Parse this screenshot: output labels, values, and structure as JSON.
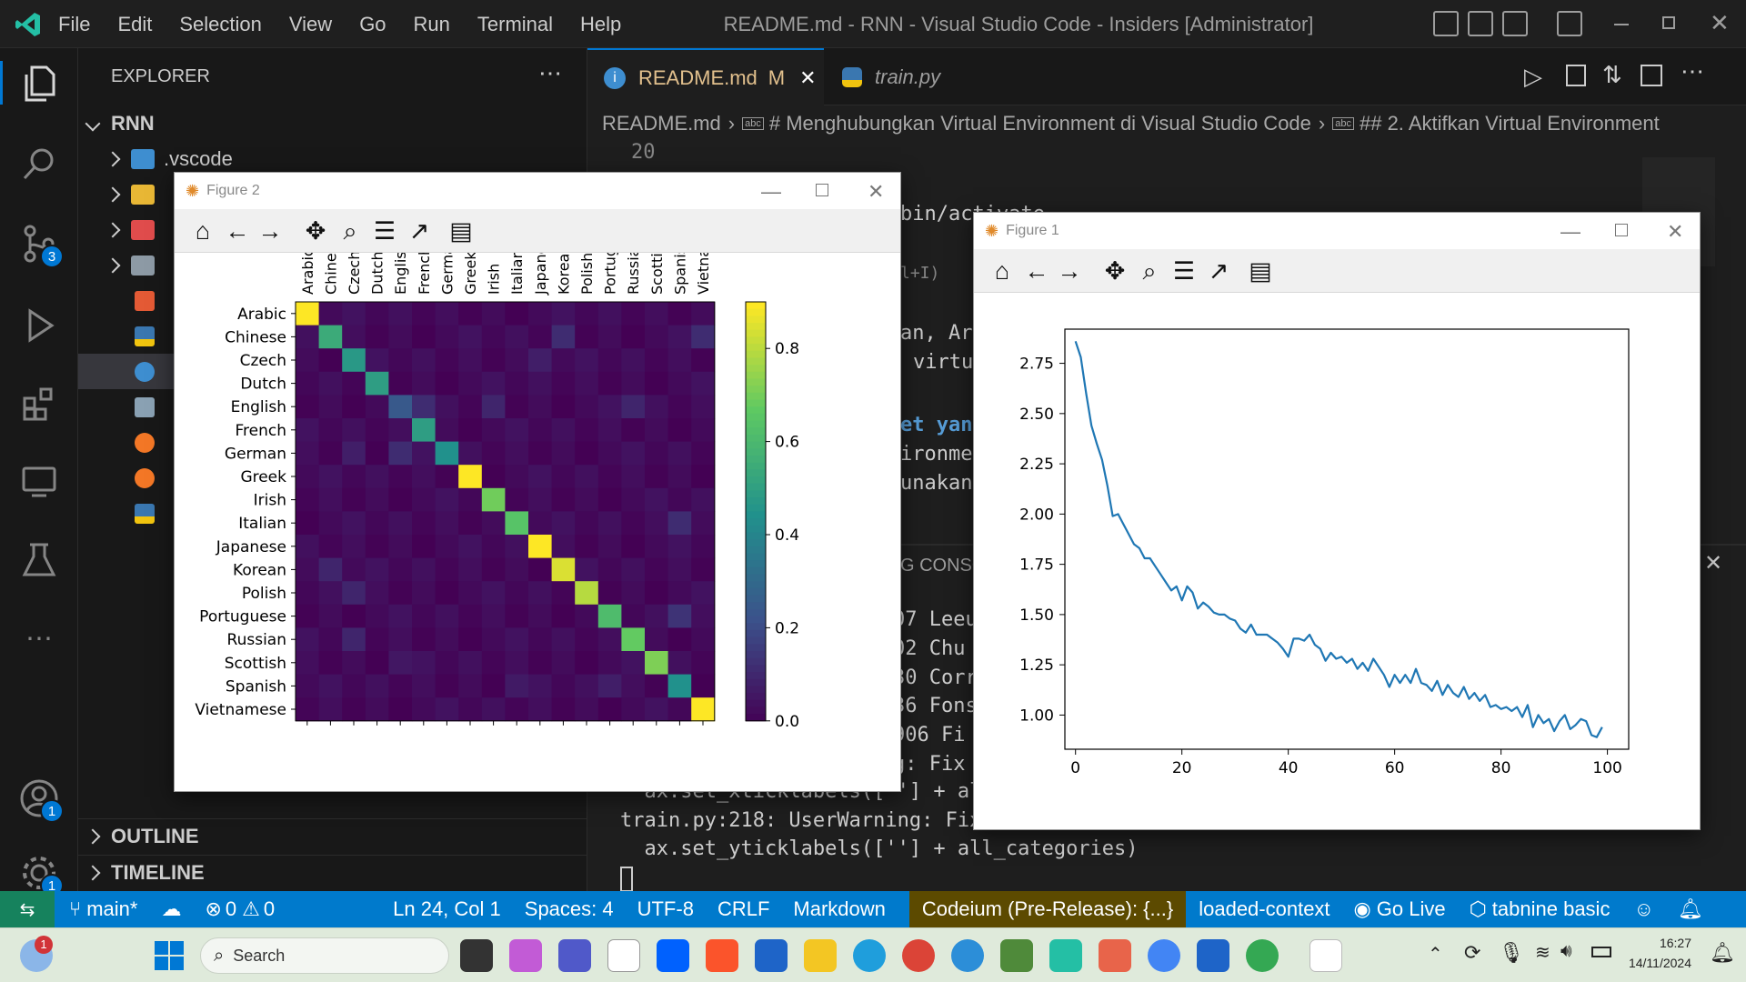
{
  "window": {
    "title": "README.md - RNN - Visual Studio Code - Insiders [Administrator]"
  },
  "menu": [
    "File",
    "Edit",
    "Selection",
    "View",
    "Go",
    "Run",
    "Terminal",
    "Help"
  ],
  "activity": {
    "scm_badge": "3",
    "accounts_badge": "1",
    "settings_badge": "1"
  },
  "explorer": {
    "title": "EXPLORER",
    "root": "RNN",
    "first_item": ".vscode",
    "outline": "OUTLINE",
    "timeline": "TIMELINE"
  },
  "tabs": [
    {
      "label": "README.md",
      "status": "M"
    },
    {
      "label": "train.py"
    }
  ],
  "breadcrumb": [
    "README.md",
    "# Menghubungkan Virtual Environment di Visual Studio Code",
    "## 2. Aktifkan Virtual Environment"
  ],
  "code": {
    "line_no": "20",
    "fragments": [
      "bin/activate",
      "l+I)",
      "an, Ar",
      "virtu",
      "et yan",
      "ironme",
      "unakan"
    ],
    "panel_label": "G CONSO",
    "terminal_partial": [
      "07 Leeu",
      "02 Chu",
      "30 Corr",
      "36 Fons",
      "906 Fi",
      "g: Fix"
    ],
    "terminal_lines": [
      "  ax.set_xticklabels([''] + al",
      "train.py:218: UserWarning: Fix",
      "  ax.set_yticklabels([''] + all_categories)"
    ]
  },
  "status": {
    "branch": "main*",
    "errors": "0",
    "warnings": "0",
    "position": "Ln 24, Col 1",
    "spaces": "Spaces: 4",
    "encoding": "UTF-8",
    "eol": "CRLF",
    "language": "Markdown",
    "codeium": "Codeium (Pre-Release): {...}",
    "context": "loaded-context",
    "golive": "Go Live",
    "tabnine": "tabnine basic"
  },
  "taskbar": {
    "search": "Search",
    "time": "16:27",
    "date": "14/11/2024",
    "weather_badge": "1"
  },
  "figure2": {
    "title": "Figure 2",
    "chart_data": {
      "type": "heatmap",
      "categories": [
        "Arabic",
        "Chinese",
        "Czech",
        "Dutch",
        "English",
        "French",
        "German",
        "Greek",
        "Irish",
        "Italian",
        "Japanese",
        "Korean",
        "Polish",
        "Portuguese",
        "Russian",
        "Scottish",
        "Spanish",
        "Vietnamese"
      ],
      "x_tick_labels": [
        "Arabic",
        "Chines",
        "Czech",
        "Dutch",
        "English",
        "French",
        "Germa",
        "Greek",
        "Irish",
        "Italian",
        "Japane",
        "Korean",
        "Polish",
        "Portug",
        "Russian",
        "Scottis",
        "Spanish",
        "Vietnar"
      ],
      "diagonal": [
        0.9,
        0.55,
        0.48,
        0.5,
        0.25,
        0.5,
        0.45,
        0.92,
        0.7,
        0.65,
        0.9,
        0.85,
        0.8,
        0.62,
        0.68,
        0.72,
        0.45,
        0.9
      ],
      "off_diagonal": [
        {
          "row": 1,
          "col": 17,
          "value": 0.12
        },
        {
          "row": 1,
          "col": 11,
          "value": 0.12
        },
        {
          "row": 2,
          "col": 10,
          "value": 0.08
        },
        {
          "row": 4,
          "col": 8,
          "value": 0.1
        },
        {
          "row": 4,
          "col": 14,
          "value": 0.1
        },
        {
          "row": 4,
          "col": 5,
          "value": 0.12
        },
        {
          "row": 6,
          "col": 2,
          "value": 0.08
        },
        {
          "row": 6,
          "col": 4,
          "value": 0.12
        },
        {
          "row": 9,
          "col": 16,
          "value": 0.12
        },
        {
          "row": 11,
          "col": 1,
          "value": 0.1
        },
        {
          "row": 12,
          "col": 2,
          "value": 0.1
        },
        {
          "row": 13,
          "col": 16,
          "value": 0.14
        },
        {
          "row": 14,
          "col": 2,
          "value": 0.1
        },
        {
          "row": 15,
          "col": 4,
          "value": 0.06
        },
        {
          "row": 16,
          "col": 9,
          "value": 0.07
        },
        {
          "row": 16,
          "col": 13,
          "value": 0.08
        }
      ],
      "colorbar": {
        "min": 0.0,
        "max": 0.9,
        "ticks": [
          "0.8",
          "0.6",
          "0.4",
          "0.2",
          "0.0"
        ]
      }
    }
  },
  "figure1": {
    "title": "Figure 1",
    "chart_data": {
      "type": "line",
      "x": [
        0,
        1,
        2,
        3,
        4,
        5,
        6,
        7,
        8,
        9,
        10,
        11,
        12,
        13,
        14,
        15,
        16,
        17,
        18,
        19,
        20,
        21,
        22,
        23,
        24,
        25,
        26,
        27,
        28,
        29,
        30,
        31,
        32,
        33,
        34,
        35,
        36,
        37,
        38,
        39,
        40,
        41,
        42,
        43,
        44,
        45,
        46,
        47,
        48,
        49,
        50,
        51,
        52,
        53,
        54,
        55,
        56,
        57,
        58,
        59,
        60,
        61,
        62,
        63,
        64,
        65,
        66,
        67,
        68,
        69,
        70,
        71,
        72,
        73,
        74,
        75,
        76,
        77,
        78,
        79,
        80,
        81,
        82,
        83,
        84,
        85,
        86,
        87,
        88,
        89,
        90,
        91,
        92,
        93,
        94,
        95,
        96,
        97,
        98,
        99
      ],
      "y": [
        2.86,
        2.78,
        2.6,
        2.44,
        2.35,
        2.27,
        2.14,
        1.99,
        2.0,
        1.95,
        1.9,
        1.85,
        1.83,
        1.78,
        1.78,
        1.74,
        1.7,
        1.66,
        1.62,
        1.64,
        1.57,
        1.64,
        1.61,
        1.53,
        1.56,
        1.54,
        1.51,
        1.5,
        1.5,
        1.48,
        1.47,
        1.43,
        1.41,
        1.45,
        1.4,
        1.4,
        1.4,
        1.38,
        1.36,
        1.33,
        1.29,
        1.38,
        1.38,
        1.37,
        1.4,
        1.35,
        1.33,
        1.27,
        1.31,
        1.28,
        1.29,
        1.26,
        1.28,
        1.23,
        1.26,
        1.22,
        1.28,
        1.24,
        1.2,
        1.14,
        1.2,
        1.16,
        1.2,
        1.16,
        1.23,
        1.16,
        1.15,
        1.12,
        1.17,
        1.1,
        1.15,
        1.11,
        1.09,
        1.14,
        1.08,
        1.11,
        1.07,
        1.1,
        1.04,
        1.05,
        1.03,
        1.04,
        1.02,
        1.04,
        0.99,
        1.05,
        0.94,
        1.0,
        0.96,
        0.98,
        0.92,
        0.97,
        1.0,
        0.93,
        0.95,
        0.98,
        0.97,
        0.9,
        0.89,
        0.94
      ],
      "xlim": [
        -2,
        104
      ],
      "ylim": [
        0.83,
        2.92
      ],
      "x_ticks": [
        0,
        20,
        40,
        60,
        80,
        100
      ],
      "y_ticks": [
        1.0,
        1.25,
        1.5,
        1.75,
        2.0,
        2.25,
        2.5,
        2.75
      ],
      "color": "#1f77b4"
    }
  }
}
